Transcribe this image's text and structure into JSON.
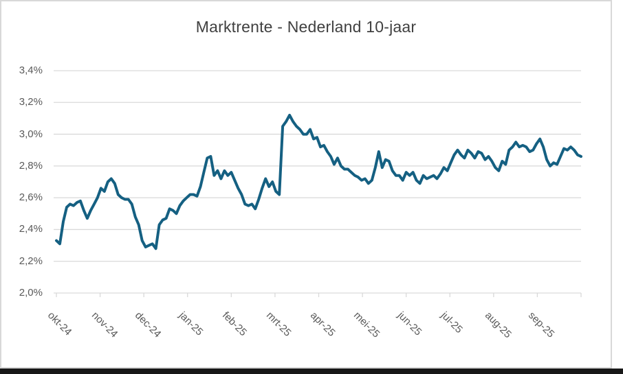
{
  "window": {
    "background": "#FFFFFF",
    "frame_border_color": "#D8D8D8",
    "bottom_bar_color": "#181818"
  },
  "chart_data": {
    "type": "line",
    "title": "Marktrente - Nederland 10-jaar",
    "title_color": "#404040",
    "xlabel": "",
    "ylabel": "",
    "ylim": [
      2.0,
      3.4
    ],
    "y_step": 0.2,
    "y_tick_labels": [
      "2,0%",
      "2,2%",
      "2,4%",
      "2,6%",
      "2,8%",
      "3,0%",
      "3,2%",
      "3,4%"
    ],
    "x_tick_labels": [
      "okt-24",
      "nov-24",
      "dec-24",
      "jan-25",
      "feb-25",
      "mrt-25",
      "apr-25",
      "mei-25",
      "jun-25",
      "jul-25",
      "aug-25",
      "sep-25"
    ],
    "x_label_rotation_deg": 45,
    "grid": true,
    "gridline_color": "#D9D9D9",
    "axis_color": "#D9D9D9",
    "axis_label_color": "#595959",
    "legend": "none",
    "series": [
      {
        "name": "Marktrente Nederland 10-jaar",
        "color": "#156082",
        "unit": "%",
        "values": [
          2.33,
          2.31,
          2.45,
          2.54,
          2.56,
          2.55,
          2.57,
          2.58,
          2.52,
          2.47,
          2.52,
          2.56,
          2.6,
          2.66,
          2.64,
          2.7,
          2.72,
          2.69,
          2.62,
          2.6,
          2.59,
          2.59,
          2.56,
          2.48,
          2.43,
          2.33,
          2.29,
          2.3,
          2.31,
          2.28,
          2.43,
          2.46,
          2.47,
          2.53,
          2.52,
          2.5,
          2.55,
          2.58,
          2.6,
          2.62,
          2.62,
          2.61,
          2.67,
          2.76,
          2.85,
          2.86,
          2.74,
          2.77,
          2.72,
          2.77,
          2.74,
          2.76,
          2.71,
          2.66,
          2.62,
          2.56,
          2.55,
          2.56,
          2.53,
          2.59,
          2.66,
          2.72,
          2.67,
          2.7,
          2.64,
          2.62,
          3.05,
          3.08,
          3.12,
          3.08,
          3.05,
          3.03,
          3.0,
          3.0,
          3.03,
          2.97,
          2.98,
          2.92,
          2.93,
          2.89,
          2.86,
          2.81,
          2.85,
          2.8,
          2.78,
          2.78,
          2.76,
          2.74,
          2.73,
          2.71,
          2.72,
          2.69,
          2.71,
          2.79,
          2.89,
          2.79,
          2.84,
          2.83,
          2.77,
          2.74,
          2.74,
          2.71,
          2.76,
          2.74,
          2.76,
          2.71,
          2.69,
          2.74,
          2.72,
          2.73,
          2.74,
          2.72,
          2.75,
          2.79,
          2.77,
          2.82,
          2.87,
          2.9,
          2.87,
          2.85,
          2.9,
          2.88,
          2.85,
          2.89,
          2.88,
          2.84,
          2.86,
          2.83,
          2.79,
          2.77,
          2.83,
          2.81,
          2.9,
          2.92,
          2.95,
          2.92,
          2.93,
          2.92,
          2.89,
          2.9,
          2.94,
          2.97,
          2.92,
          2.84,
          2.8,
          2.82,
          2.81,
          2.86,
          2.91,
          2.9,
          2.92,
          2.9,
          2.87,
          2.86
        ]
      }
    ]
  }
}
